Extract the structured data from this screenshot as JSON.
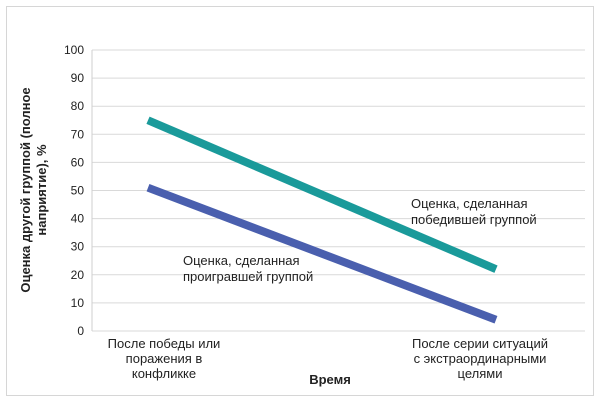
{
  "chart_data": {
    "type": "line",
    "title": "",
    "xlabel": "Время",
    "ylabel_lines": [
      "Оценка другой группой (полное",
      "наприятие), %"
    ],
    "ylim": [
      0,
      100
    ],
    "yticks": [
      0,
      10,
      20,
      30,
      40,
      50,
      60,
      70,
      80,
      90,
      100
    ],
    "grid": true,
    "categories": [
      [
        "После победы или",
        "поражения в",
        "конфликке"
      ],
      [
        "После серии ситуаций",
        "с экстраординарными",
        "целями"
      ]
    ],
    "series": [
      {
        "name_lines": [
          "Оценка, сделанная",
          "победившей группой"
        ],
        "values": [
          75,
          22
        ],
        "color": "#1a9a9a"
      },
      {
        "name_lines": [
          "Оценка, сделанная",
          "проигравшей группой"
        ],
        "values": [
          51,
          4
        ],
        "color": "#4a5fae"
      }
    ]
  }
}
